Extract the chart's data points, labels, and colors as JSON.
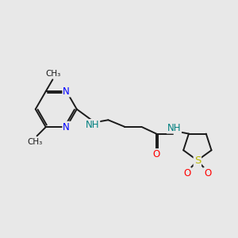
{
  "bg_color": "#e8e8e8",
  "bond_color": "#1a1a1a",
  "N_color": "#0000ff",
  "O_color": "#ff0000",
  "S_color": "#b8b800",
  "NH_color": "#008080",
  "lw": 1.4,
  "fs": 8.5,
  "fig_w": 3.0,
  "fig_h": 3.0,
  "dpi": 100,
  "xlim": [
    0,
    12
  ],
  "ylim": [
    0,
    12
  ]
}
